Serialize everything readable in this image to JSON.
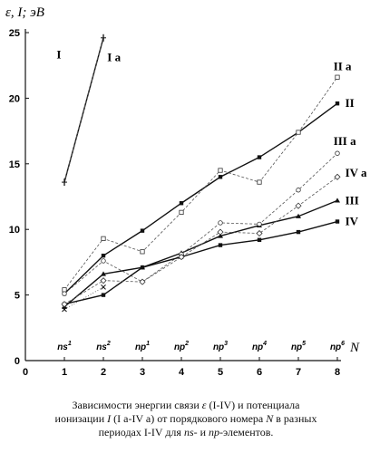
{
  "chart_data": {
    "type": "line",
    "y_axis_title": "ε, I; эВ",
    "x_axis_title": "N",
    "x": [
      1,
      2,
      3,
      4,
      5,
      6,
      7,
      8
    ],
    "xlim": [
      0,
      8
    ],
    "ylim": [
      0,
      25
    ],
    "x_ticks": [
      "0",
      "1",
      "2",
      "3",
      "4",
      "5",
      "6",
      "7",
      "8"
    ],
    "y_ticks": [
      "0",
      "5",
      "10",
      "15",
      "20",
      "25"
    ],
    "categories": [
      {
        "base": "ns",
        "sup": "1"
      },
      {
        "base": "ns",
        "sup": "2"
      },
      {
        "base": "np",
        "sup": "1"
      },
      {
        "base": "np",
        "sup": "2"
      },
      {
        "base": "np",
        "sup": "3"
      },
      {
        "base": "np",
        "sup": "4"
      },
      {
        "base": "np",
        "sup": "5"
      },
      {
        "base": "np",
        "sup": "6"
      }
    ],
    "grid": false,
    "series": [
      {
        "name": "I",
        "style": "solid",
        "marker": "bar",
        "values": [
          13.6,
          24.6,
          null,
          null,
          null,
          null,
          null,
          null
        ]
      },
      {
        "name": "I a",
        "style": "dashed",
        "marker": "plus",
        "values": [
          13.6,
          24.6,
          null,
          null,
          null,
          null,
          null,
          null
        ]
      },
      {
        "name": "II",
        "style": "solid",
        "marker": "square",
        "values": [
          5.1,
          8.0,
          9.9,
          12.0,
          14.0,
          15.5,
          17.4,
          19.6
        ]
      },
      {
        "name": "II a",
        "style": "dashed",
        "marker": "square-open",
        "values": [
          5.4,
          9.3,
          8.3,
          11.3,
          14.5,
          13.6,
          17.4,
          21.6
        ]
      },
      {
        "name": "III",
        "style": "solid",
        "marker": "triangle",
        "values": [
          4.1,
          6.6,
          7.1,
          8.2,
          9.5,
          10.3,
          11.0,
          12.2
        ]
      },
      {
        "name": "III a",
        "style": "dashed",
        "marker": "circle-open",
        "values": [
          5.1,
          7.6,
          6.0,
          8.1,
          10.5,
          10.4,
          13.0,
          15.8
        ]
      },
      {
        "name": "IV",
        "style": "solid",
        "marker": "square",
        "values": [
          4.3,
          5.0,
          7.1,
          7.9,
          8.8,
          9.2,
          9.8,
          10.6
        ]
      },
      {
        "name": "IV a",
        "style": "dashed",
        "marker": "diamond-open",
        "values": [
          4.3,
          6.1,
          6.0,
          7.9,
          9.8,
          9.7,
          11.8,
          14.0
        ]
      },
      {
        "name": "",
        "style": "dotted",
        "marker": "cross",
        "values": [
          3.9,
          5.6,
          null,
          null,
          null,
          null,
          null,
          null
        ]
      }
    ],
    "labels": [
      {
        "text": "I",
        "x": 0.8,
        "y": 23.3
      },
      {
        "text": "I a",
        "x": 2.1,
        "y": 23.1
      },
      {
        "text": "II a",
        "x": 7.9,
        "y": 22.4
      },
      {
        "text": "II",
        "x": 8.2,
        "y": 19.6
      },
      {
        "text": "III a",
        "x": 7.9,
        "y": 16.7
      },
      {
        "text": "IV a",
        "x": 8.2,
        "y": 14.3
      },
      {
        "text": "III",
        "x": 8.2,
        "y": 12.2
      },
      {
        "text": "IV",
        "x": 8.2,
        "y": 10.6
      }
    ]
  },
  "caption": {
    "line1_a": "Зависимости энергии связи ",
    "line1_sym": "ε",
    "line1_b": " (I-IV) и потенциала",
    "line2_a": "ионизации ",
    "line2_sym": "I",
    "line2_b": " (I a-IV a) от порядкового номера ",
    "line2_n": "N",
    "line2_c": " в разных",
    "line3_a": "периодах I-IV для ",
    "line3_ns": "ns",
    "line3_b": "- и ",
    "line3_np": "np",
    "line3_c": "-элементов."
  }
}
